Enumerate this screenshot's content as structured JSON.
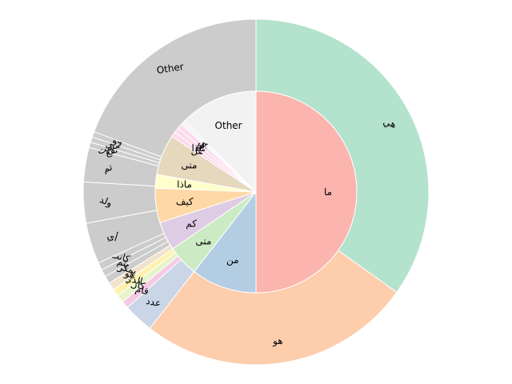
{
  "chart_data": {
    "type": "sunburst",
    "title": "",
    "inner": [
      {
        "label": "ما",
        "value": 50.0,
        "color": "#fbb4ae"
      },
      {
        "label": "من",
        "value": 10.5,
        "color": "#b3cde3"
      },
      {
        "label": "متى",
        "value": 5.0,
        "color": "#ccebc5"
      },
      {
        "label": "كم",
        "value": 4.6,
        "color": "#decbe4"
      },
      {
        "label": "كيف",
        "value": 5.5,
        "color": "#fed9a6"
      },
      {
        "label": "ماذا",
        "value": 2.2,
        "color": "#ffffcc"
      },
      {
        "label": "متى",
        "value": 6.5,
        "color": "#e5d8bd"
      },
      {
        "label": "هل",
        "value": 0.8,
        "color": "#fddaec"
      },
      {
        "label": "ماذا",
        "value": 0.8,
        "color": "#fddaec"
      },
      {
        "label": "أين",
        "value": 0.8,
        "color": "#fddaec"
      },
      {
        "label": "عن",
        "value": 0.4,
        "color": "#f2f2f2"
      },
      {
        "label": "لتي",
        "value": 0.4,
        "color": "#f2f2f2"
      },
      {
        "label": "Other",
        "value": 12.5,
        "color": "#f2f2f2"
      }
    ],
    "outer": [
      {
        "label": "هي",
        "value": 34.6,
        "color": "#b3e2cd"
      },
      {
        "label": "هو",
        "value": 25.5,
        "color": "#fdcdac"
      },
      {
        "label": "عدد",
        "value": 2.8,
        "color": "#cbd5e8"
      },
      {
        "label": "قام",
        "value": 0.7,
        "color": "#f4cae4"
      },
      {
        "label": "كان",
        "value": 0.7,
        "color": "#e6f5c9"
      },
      {
        "label": "الذي",
        "value": 0.7,
        "color": "#fff2ae"
      },
      {
        "label": "هو",
        "value": 0.7,
        "color": "#f1e2cc"
      },
      {
        "label": "يمكن",
        "value": 0.7,
        "color": "#cccccc"
      },
      {
        "label": "يتم",
        "value": 0.7,
        "color": "#cccccc"
      },
      {
        "label": "كانت",
        "value": 0.7,
        "color": "#cccccc"
      },
      {
        "label": "أي",
        "value": 3.8,
        "color": "#cccccc"
      },
      {
        "label": "ولد",
        "value": 3.8,
        "color": "#cccccc"
      },
      {
        "label": "تم",
        "value": 3.2,
        "color": "#cccccc"
      },
      {
        "label": "تقع",
        "value": 0.5,
        "color": "#cccccc"
      },
      {
        "label": "تأسست",
        "value": 0.5,
        "color": "#cccccc"
      },
      {
        "label": "توفي",
        "value": 0.5,
        "color": "#cccccc"
      },
      {
        "label": "Other",
        "value": 19.2,
        "color": "#cccccc"
      }
    ],
    "start_angle_deg": 90,
    "direction": "clockwise",
    "legend": "none",
    "grid": false
  }
}
